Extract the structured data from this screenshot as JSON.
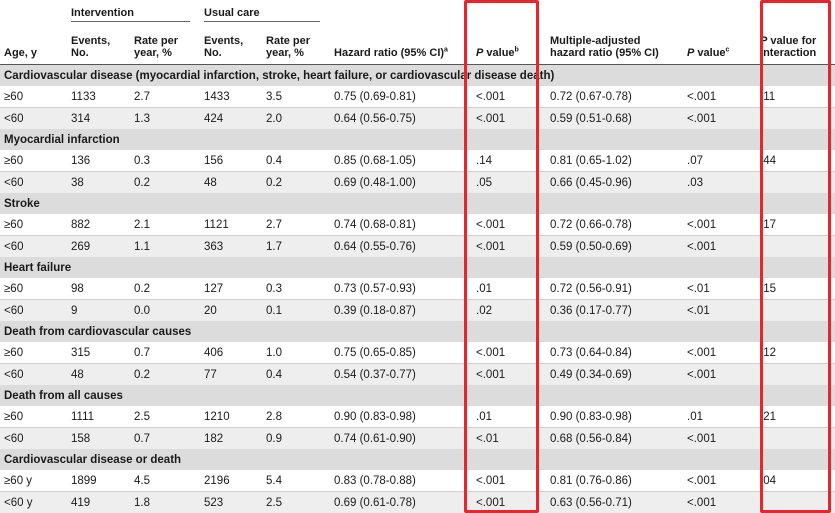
{
  "header": {
    "intervention": "Intervention",
    "usual_care": "Usual care",
    "age": "Age, y",
    "events1": "Events,",
    "events2": "No.",
    "rate1": "Rate per",
    "rate2": "year, %",
    "hazard": "Hazard ratio (95% CI)",
    "hazard_sup": "a",
    "p": "P",
    "value": " value",
    "p_sup": "b",
    "madj1": "Multiple-adjusted",
    "madj2": "hazard ratio (95% CI)",
    "p2_sup": "c",
    "pint1": "P",
    "pint1b": " value for",
    "pint2": "interaction"
  },
  "sections": [
    {
      "title": "Cardiovascular disease (myocardial infarction, stroke, heart failure, or cardiovascular disease death)",
      "rows": [
        [
          "≥60",
          "1133",
          "2.7",
          "1433",
          "3.5",
          "0.75 (0.69-0.81)",
          "<.001",
          "0.72 (0.67-0.78)",
          "<.001",
          ".11"
        ],
        [
          "<60",
          "314",
          "1.3",
          "424",
          "2.0",
          "0.64 (0.56-0.75)",
          "<.001",
          "0.59 (0.51-0.68)",
          "<.001",
          ""
        ]
      ]
    },
    {
      "title": "Myocardial infarction",
      "rows": [
        [
          "≥60",
          "136",
          "0.3",
          "156",
          "0.4",
          "0.85 (0.68-1.05)",
          ".14",
          "0.81 (0.65-1.02)",
          ".07",
          ".44"
        ],
        [
          "<60",
          "38",
          "0.2",
          "48",
          "0.2",
          "0.69 (0.48-1.00)",
          ".05",
          "0.66 (0.45-0.96)",
          ".03",
          ""
        ]
      ]
    },
    {
      "title": "Stroke",
      "rows": [
        [
          "≥60",
          "882",
          "2.1",
          "1121",
          "2.7",
          "0.74 (0.68-0.81)",
          "<.001",
          "0.72 (0.66-0.78)",
          "<.001",
          ".17"
        ],
        [
          "<60",
          "269",
          "1.1",
          "363",
          "1.7",
          "0.64 (0.55-0.76)",
          "<.001",
          "0.59 (0.50-0.69)",
          "<.001",
          ""
        ]
      ]
    },
    {
      "title": "Heart failure",
      "rows": [
        [
          "≥60",
          "98",
          "0.2",
          "127",
          "0.3",
          "0.73 (0.57-0.93)",
          ".01",
          "0.72 (0.56-0.91)",
          "<.01",
          ".15"
        ],
        [
          "<60",
          "9",
          "0.0",
          "20",
          "0.1",
          "0.39 (0.18-0.87)",
          ".02",
          "0.36 (0.17-0.77)",
          "<.01",
          ""
        ]
      ]
    },
    {
      "title": "Death from cardiovascular causes",
      "rows": [
        [
          "≥60",
          "315",
          "0.7",
          "406",
          "1.0",
          "0.75 (0.65-0.85)",
          "<.001",
          "0.73 (0.64-0.84)",
          "<.001",
          ".12"
        ],
        [
          "<60",
          "48",
          "0.2",
          "77",
          "0.4",
          "0.54 (0.37-0.77)",
          "<.001",
          "0.49 (0.34-0.69)",
          "<.001",
          ""
        ]
      ]
    },
    {
      "title": "Death from all causes",
      "rows": [
        [
          "≥60",
          "1111",
          "2.5",
          "1210",
          "2.8",
          "0.90 (0.83-0.98)",
          ".01",
          "0.90 (0.83-0.98)",
          ".01",
          ".21"
        ],
        [
          "<60",
          "158",
          "0.7",
          "182",
          "0.9",
          "0.74 (0.61-0.90)",
          "<.01",
          "0.68 (0.56-0.84)",
          "<.001",
          ""
        ]
      ]
    },
    {
      "title": "Cardiovascular disease or death",
      "rows": [
        [
          "≥60 y",
          "1899",
          "4.5",
          "2196",
          "5.4",
          "0.83 (0.78-0.88)",
          "<.001",
          "0.81 (0.76-0.86)",
          "<.001",
          ".04"
        ],
        [
          "<60 y",
          "419",
          "1.8",
          "523",
          "2.5",
          "0.69 (0.61-0.78)",
          "<.001",
          "0.63 (0.56-0.71)",
          "<.001",
          ""
        ]
      ]
    }
  ],
  "colors": {
    "highlight": "#e6262c",
    "section_bg": "#dddcdc",
    "alt_row_bg": "#efeeee"
  }
}
